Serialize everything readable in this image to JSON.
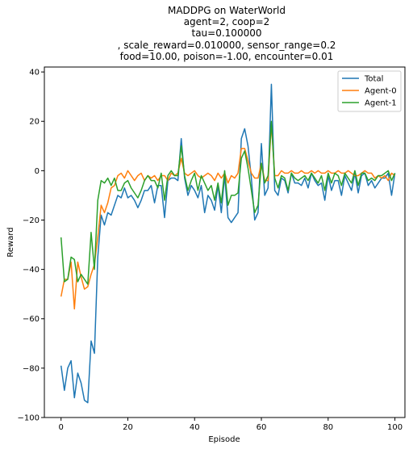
{
  "chart_data": {
    "type": "line",
    "title_lines": [
      "MADDPG on WaterWorld",
      "agent=2, coop=2",
      "tau=0.100000",
      ", scale_reward=0.010000, sensor_range=0.2",
      "food=10.00, poison=-1.00, encounter=0.01"
    ],
    "xlabel": "Episode",
    "ylabel": "Reward",
    "xlim": [
      -5,
      103
    ],
    "ylim": [
      -100,
      42
    ],
    "xticks": [
      0,
      20,
      40,
      60,
      80,
      100
    ],
    "yticks": [
      -100,
      -80,
      -60,
      -40,
      -20,
      0,
      20,
      40
    ],
    "grid": false,
    "legend": "top-right",
    "series": [
      {
        "name": "Total",
        "color": "#1f77b4",
        "values": [
          -79,
          -89,
          -80,
          -77,
          -92,
          -82,
          -86,
          -93,
          -94,
          -69,
          -74,
          -35,
          -18,
          -22,
          -17,
          -18,
          -14,
          -10,
          -11,
          -7,
          -11,
          -10,
          -12,
          -15,
          -12,
          -8,
          -8,
          -6,
          -13,
          -6,
          -6,
          -19,
          -4,
          -3,
          -3,
          -4,
          13,
          -3,
          -10,
          -6,
          -8,
          -11,
          -6,
          -17,
          -10,
          -12,
          -16,
          -6,
          -17,
          -2,
          -19,
          -21,
          -19,
          -17,
          13,
          17,
          10,
          -3,
          -20,
          -17,
          11,
          -10,
          -7,
          35,
          -8,
          -10,
          -3,
          -4,
          -9,
          -1,
          -5,
          -5,
          -6,
          -3,
          -7,
          -1,
          -4,
          -6,
          -5,
          -12,
          -2,
          -8,
          -4,
          -4,
          -10,
          -2,
          -5,
          -8,
          -1,
          -9,
          -2,
          -1,
          -6,
          -4,
          -7,
          -5,
          -3,
          -3,
          -1,
          -10,
          -1
        ],
        "color_note": "matplotlib default blue"
      },
      {
        "name": "Agent-0",
        "color": "#ff7f0e",
        "values": [
          -51,
          -44,
          -44,
          -37,
          -56,
          -37,
          -43,
          -48,
          -47,
          -42,
          -38,
          -27,
          -14,
          -17,
          -13,
          -7,
          -6,
          -2,
          -1,
          -3,
          0,
          -2,
          -4,
          -2,
          -1,
          -4,
          -2,
          -3,
          -2,
          -4,
          -2,
          -2,
          -4,
          -1,
          -2,
          -1,
          5,
          -1,
          -2,
          -1,
          0,
          -2,
          -3,
          -2,
          -1,
          -2,
          -4,
          -1,
          -3,
          -1,
          -5,
          -2,
          -3,
          -1,
          9,
          9,
          4,
          -1,
          -3,
          -3,
          3,
          -4,
          -4,
          19,
          -2,
          -2,
          0,
          -1,
          -1,
          0,
          -1,
          -1,
          0,
          -1,
          -1,
          0,
          -1,
          0,
          -1,
          -1,
          0,
          -1,
          -1,
          0,
          -1,
          -1,
          0,
          -1,
          -2,
          -2,
          -1,
          0,
          -1,
          -1,
          -3,
          -2,
          -3,
          -2,
          -4,
          -1,
          -2
        ],
        "color_note": "matplotlib default orange"
      },
      {
        "name": "Agent-1",
        "color": "#2ca02c",
        "values": [
          -27,
          -45,
          -44,
          -35,
          -36,
          -45,
          -42,
          -44,
          -46,
          -25,
          -40,
          -12,
          -4,
          -5,
          -3,
          -6,
          -3,
          -8,
          -8,
          -5,
          -4,
          -7,
          -9,
          -11,
          -8,
          -4,
          -2,
          -4,
          -4,
          -7,
          -1,
          -12,
          -2,
          0,
          -2,
          -2,
          10,
          -2,
          -8,
          -4,
          -1,
          -8,
          -2,
          -5,
          -8,
          -6,
          -12,
          -5,
          -13,
          0,
          -14,
          -10,
          -10,
          -9,
          5,
          8,
          1,
          -8,
          -17,
          -14,
          3,
          -5,
          -2,
          20,
          -3,
          -7,
          -2,
          -3,
          -8,
          -1,
          -3,
          -4,
          -3,
          -2,
          -4,
          -1,
          -3,
          -5,
          -2,
          -8,
          -1,
          -5,
          -1,
          -2,
          -6,
          -1,
          -3,
          -5,
          0,
          -6,
          -1,
          -1,
          -4,
          -3,
          -4,
          -2,
          -2,
          -1,
          0,
          -4,
          -1
        ],
        "color_note": "matplotlib default green"
      }
    ],
    "colors": {
      "axis": "#000000",
      "background": "#ffffff",
      "legend_border": "#cccccc"
    }
  }
}
